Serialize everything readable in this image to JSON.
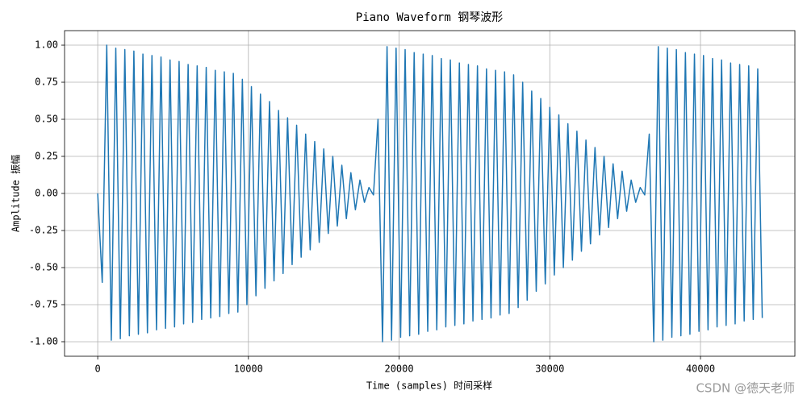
{
  "chart_data": {
    "type": "line",
    "title": "Piano Waveform 钢琴波形",
    "xlabel": "Time (samples) 时间采样",
    "ylabel": "Amplitude 振幅",
    "watermark": "CSDN @德天老师",
    "color": "#1f77b4",
    "grid": true,
    "xlim": [
      -2200,
      46265
    ],
    "ylim": [
      -1.098,
      1.098
    ],
    "xticks": [
      0,
      10000,
      20000,
      30000,
      40000
    ],
    "yticks": [
      {
        "value": -1,
        "label": "-1.00"
      },
      {
        "value": -0.75,
        "label": "-0.75"
      },
      {
        "value": -0.5,
        "label": "-0.50"
      },
      {
        "value": -0.25,
        "label": "-0.25"
      },
      {
        "value": 0,
        "label": "0.00"
      },
      {
        "value": 0.25,
        "label": "0.25"
      },
      {
        "value": 0.5,
        "label": "0.50"
      },
      {
        "value": 0.75,
        "label": "0.75"
      },
      {
        "value": 1,
        "label": "1.00"
      }
    ],
    "x": [
      0,
      300,
      600,
      900,
      1200,
      1500,
      1800,
      2100,
      2400,
      2700,
      3000,
      3300,
      3600,
      3900,
      4200,
      4500,
      4800,
      5100,
      5400,
      5700,
      6000,
      6300,
      6600,
      6900,
      7200,
      7500,
      7800,
      8100,
      8400,
      8700,
      9000,
      9300,
      9600,
      9900,
      10200,
      10500,
      10800,
      11100,
      11400,
      11700,
      12000,
      12300,
      12600,
      12900,
      13200,
      13500,
      13800,
      14100,
      14400,
      14700,
      15000,
      15300,
      15600,
      15900,
      16200,
      16500,
      16800,
      17100,
      17400,
      17700,
      18000,
      18300,
      18600,
      18900,
      19200,
      19500,
      19800,
      20100,
      20400,
      20700,
      21000,
      21300,
      21600,
      21900,
      22200,
      22500,
      22800,
      23100,
      23400,
      23700,
      24000,
      24300,
      24600,
      24900,
      25200,
      25500,
      25800,
      26100,
      26400,
      26700,
      27000,
      27300,
      27600,
      27900,
      28200,
      28500,
      28800,
      29100,
      29400,
      29700,
      30000,
      30300,
      30600,
      30900,
      31200,
      31500,
      31800,
      32100,
      32400,
      32700,
      33000,
      33300,
      33600,
      33900,
      34200,
      34500,
      34800,
      35100,
      35400,
      35700,
      36000,
      36300,
      36600,
      36900,
      37200,
      37500,
      37800,
      38100,
      38400,
      38700,
      39000,
      39300,
      39600,
      39900,
      40200,
      40500,
      40800,
      41100,
      41400,
      41700,
      42000,
      42300,
      42600,
      42900,
      43200,
      43500,
      43800,
      44100
    ],
    "values": [
      0,
      -0.6,
      1.0,
      -0.99,
      0.98,
      -0.98,
      0.97,
      -0.96,
      0.96,
      -0.95,
      0.94,
      -0.94,
      0.93,
      -0.92,
      0.92,
      -0.91,
      0.9,
      -0.9,
      0.89,
      -0.88,
      0.87,
      -0.87,
      0.86,
      -0.85,
      0.85,
      -0.84,
      0.83,
      -0.83,
      0.82,
      -0.81,
      0.81,
      -0.8,
      0.77,
      -0.75,
      0.72,
      -0.69,
      0.67,
      -0.64,
      0.62,
      -0.59,
      0.56,
      -0.54,
      0.51,
      -0.48,
      0.46,
      -0.43,
      0.4,
      -0.38,
      0.35,
      -0.33,
      0.3,
      -0.27,
      0.25,
      -0.22,
      0.19,
      -0.17,
      0.14,
      -0.11,
      0.09,
      -0.06,
      0.04,
      -0.01,
      0.5,
      -1.0,
      0.99,
      -0.99,
      0.98,
      -0.97,
      0.97,
      -0.96,
      0.95,
      -0.95,
      0.94,
      -0.93,
      0.93,
      -0.92,
      0.91,
      -0.9,
      0.9,
      -0.89,
      0.88,
      -0.88,
      0.87,
      -0.86,
      0.86,
      -0.85,
      0.84,
      -0.84,
      0.83,
      -0.82,
      0.82,
      -0.81,
      0.8,
      -0.77,
      0.75,
      -0.72,
      0.69,
      -0.66,
      0.64,
      -0.61,
      0.58,
      -0.55,
      0.53,
      -0.5,
      0.47,
      -0.45,
      0.42,
      -0.39,
      0.36,
      -0.34,
      0.31,
      -0.28,
      0.25,
      -0.23,
      0.2,
      -0.17,
      0.15,
      -0.12,
      0.09,
      -0.06,
      0.04,
      -0.01,
      0.4,
      -1.0,
      0.99,
      -0.99,
      0.98,
      -0.97,
      0.97,
      -0.96,
      0.95,
      -0.95,
      0.94,
      -0.93,
      0.93,
      -0.92,
      0.91,
      -0.9,
      0.9,
      -0.89,
      0.88,
      -0.88,
      0.87,
      -0.86,
      0.86,
      -0.85,
      0.84,
      -0.84
    ]
  }
}
